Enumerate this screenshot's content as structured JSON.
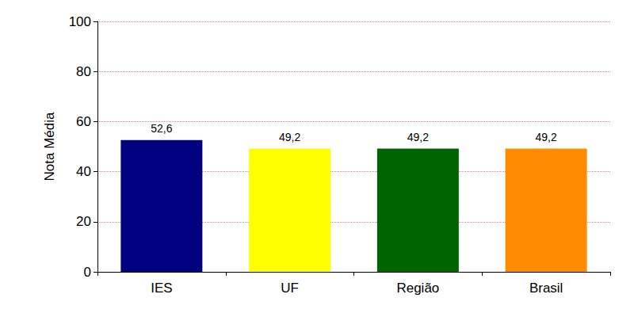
{
  "chart_data": {
    "type": "bar",
    "categories": [
      "IES",
      "UF",
      "Região",
      "Brasil"
    ],
    "values": [
      52.6,
      49.2,
      49.2,
      49.2
    ],
    "value_labels": [
      "52,6",
      "49,2",
      "49,2",
      "49,2"
    ],
    "colors": [
      "#000080",
      "#ffff00",
      "#006400",
      "#ff8c00"
    ],
    "y_label": "Nota Média",
    "ylim": [
      0,
      100
    ],
    "yticks": [
      0,
      20,
      40,
      60,
      80,
      100
    ],
    "grid": true,
    "data_labels": true
  }
}
